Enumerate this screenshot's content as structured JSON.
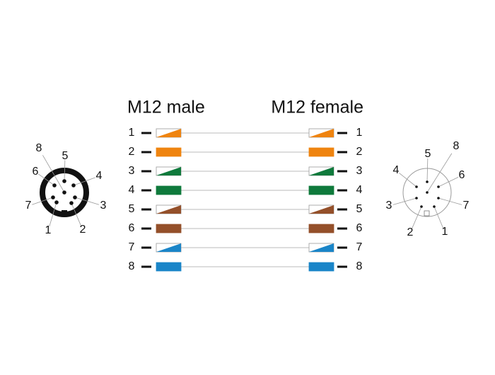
{
  "headers": {
    "left": "M12 male",
    "right": "M12 female"
  },
  "wires": [
    {
      "left": "1",
      "right": "1"
    },
    {
      "left": "2",
      "right": "2"
    },
    {
      "left": "3",
      "right": "3"
    },
    {
      "left": "4",
      "right": "4"
    },
    {
      "left": "5",
      "right": "5"
    },
    {
      "left": "6",
      "right": "6"
    },
    {
      "left": "7",
      "right": "7"
    },
    {
      "left": "8",
      "right": "8"
    }
  ],
  "male_connector": {
    "pins": [
      "1",
      "2",
      "3",
      "4",
      "5",
      "6",
      "7",
      "8"
    ]
  },
  "female_connector": {
    "pins": [
      "1",
      "2",
      "3",
      "4",
      "5",
      "6",
      "7",
      "8"
    ]
  }
}
